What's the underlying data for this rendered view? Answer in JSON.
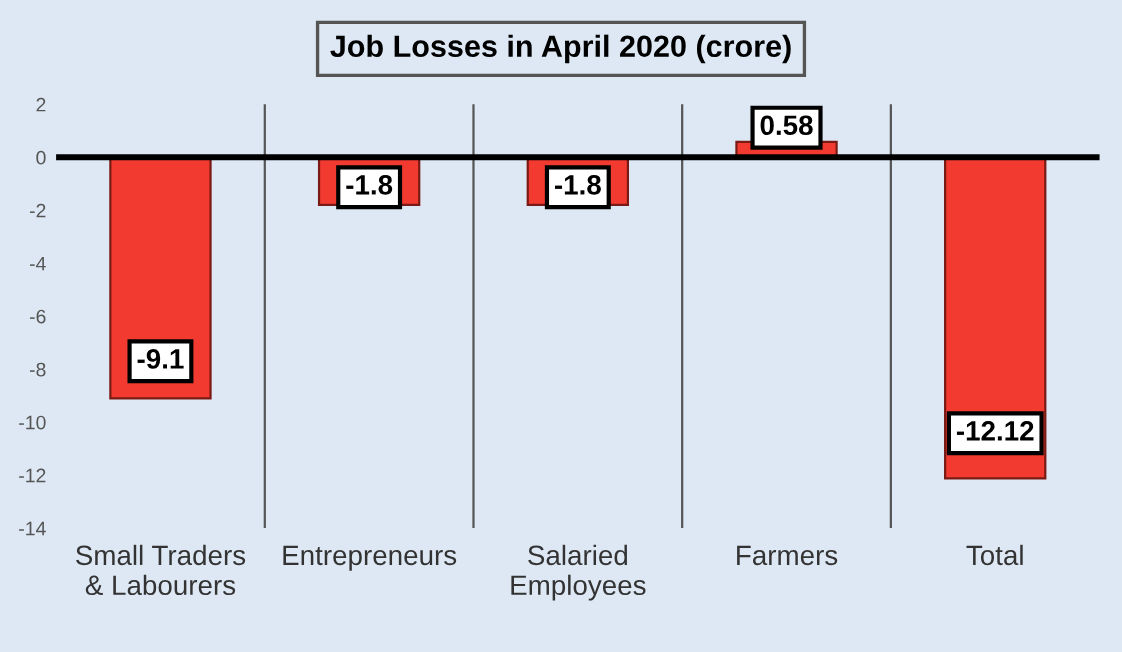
{
  "chart_data": {
    "type": "bar",
    "title": "Job Losses in April 2020 (crore)",
    "categories": [
      "Small Traders\n& Labourers",
      "Entrepreneurs",
      "Salaried\nEmployees",
      "Farmers",
      "Total"
    ],
    "values": [
      -9.1,
      -1.8,
      -1.8,
      0.58,
      -12.12
    ],
    "color": "#f23a30",
    "ylim": [
      -14,
      2
    ],
    "yticks": [
      -14,
      -12,
      -10,
      -8,
      -6,
      -4,
      -2,
      0,
      2
    ],
    "grid": "x",
    "data_labels": true
  }
}
